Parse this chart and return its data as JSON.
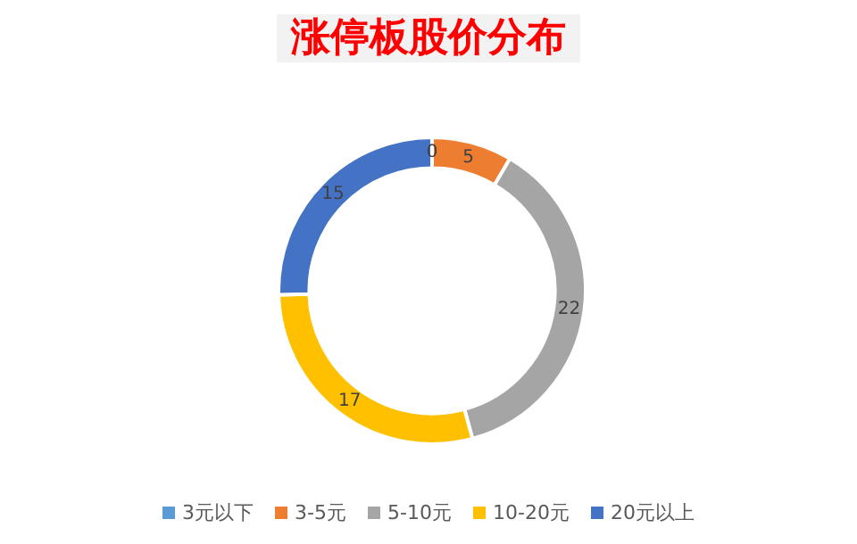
{
  "chart_data": {
    "type": "donut",
    "title": "涨停板股价分布",
    "categories": [
      "3元以下",
      "3-5元",
      "5-10元",
      "10-20元",
      "20元以上"
    ],
    "values": [
      0,
      5,
      22,
      17,
      15
    ],
    "colors": [
      "#5b9bd5",
      "#ed7d31",
      "#a5a5a5",
      "#ffc000",
      "#4472c4"
    ],
    "value_labels": [
      "0",
      "5",
      "22",
      "17",
      "15"
    ],
    "legend": "bottom"
  }
}
